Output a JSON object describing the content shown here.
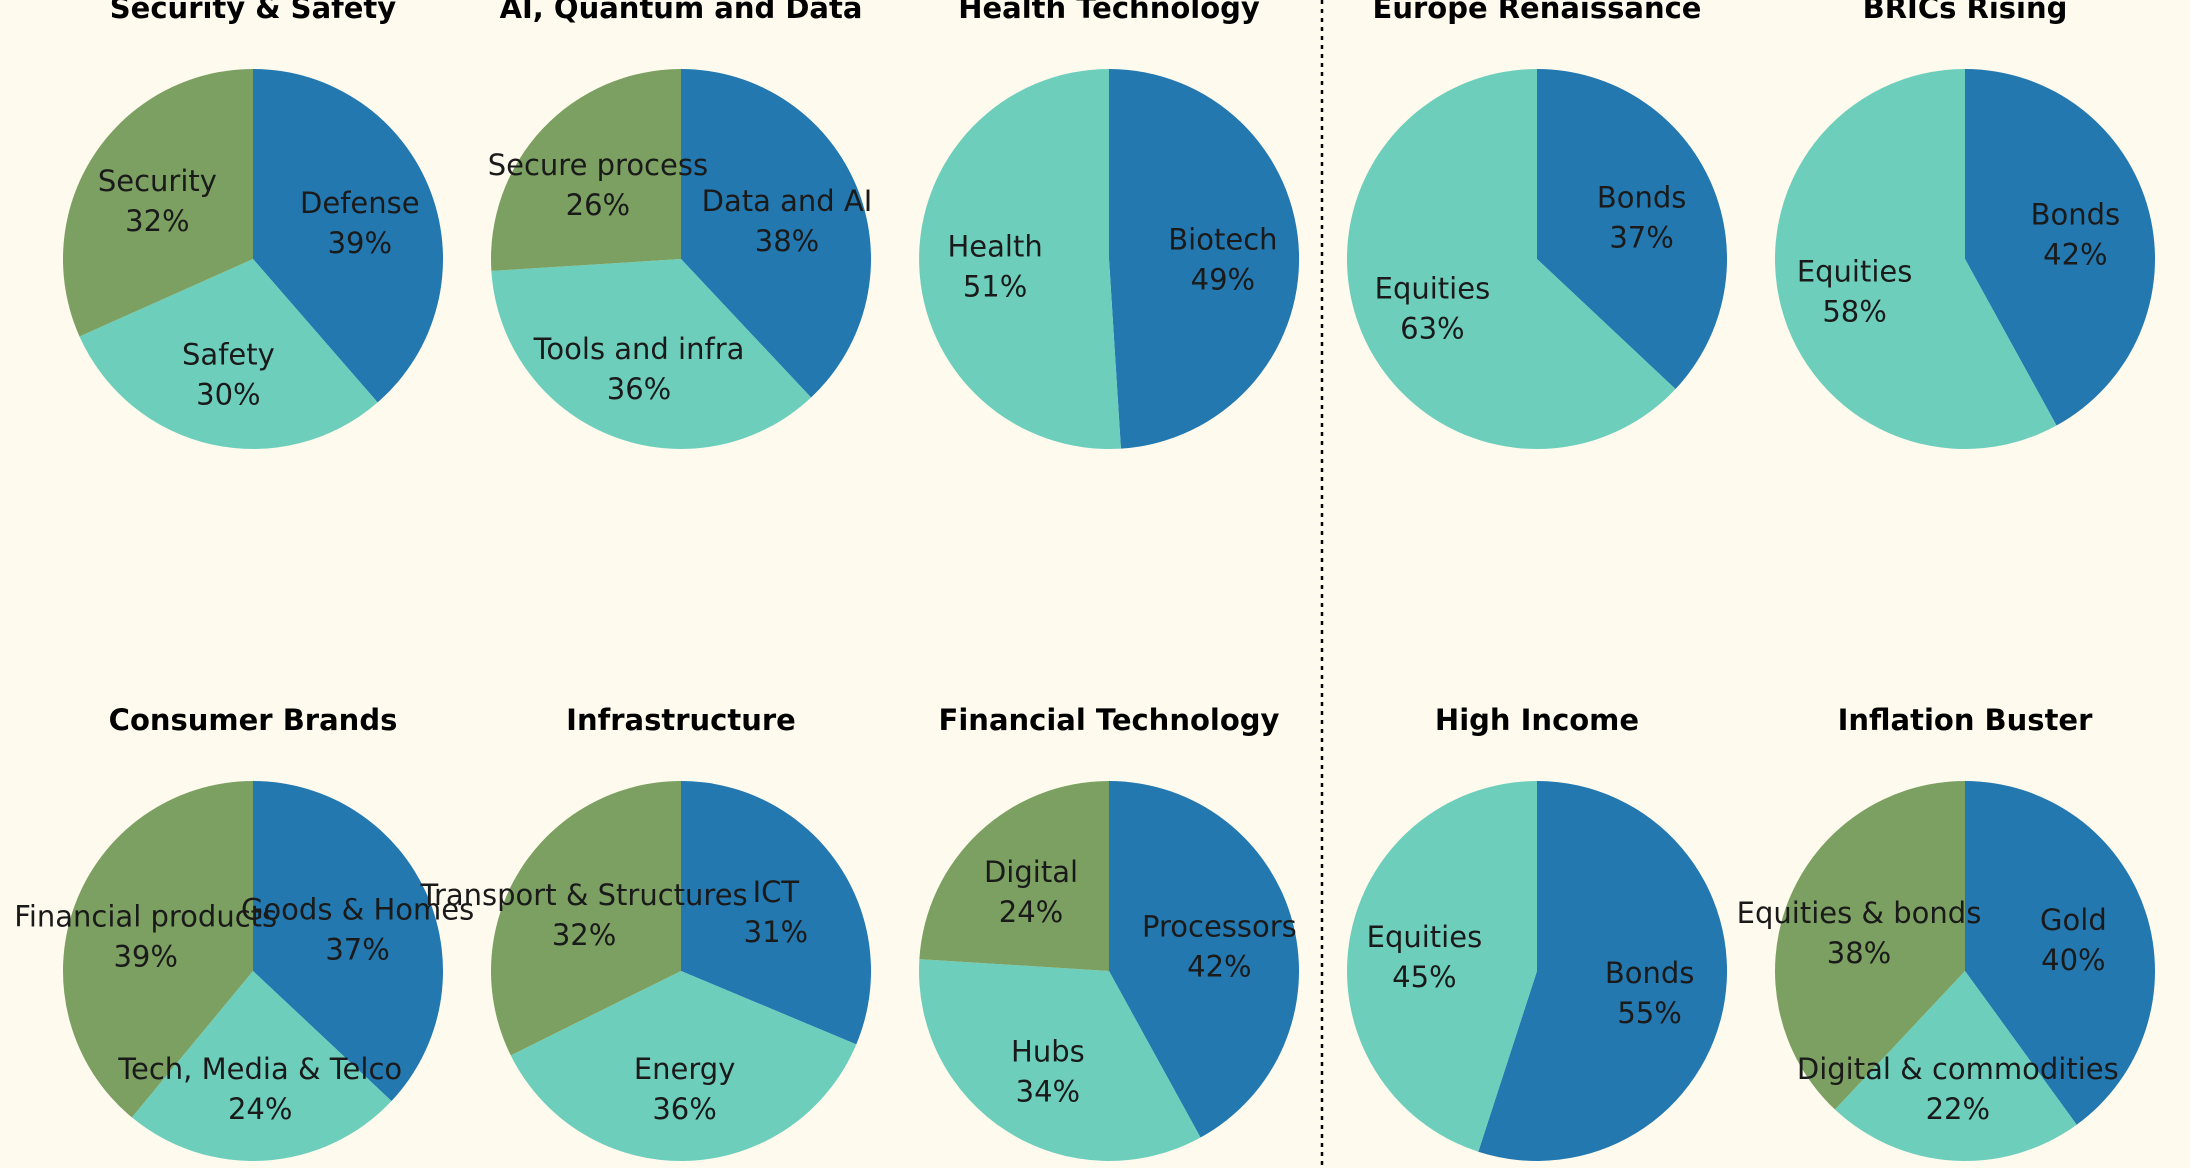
{
  "colors": {
    "blue": "#2378b0",
    "teal": "#6dcfbb",
    "green": "#7ba061",
    "background": "#fefaee"
  },
  "chart_data": [
    {
      "type": "pie",
      "title": "Security & Safety",
      "slices": [
        {
          "label": "Defense",
          "value": 39,
          "display": "39%",
          "color": "#2378b0"
        },
        {
          "label": "Safety",
          "value": 30,
          "display": "30%",
          "color": "#6dcfbb"
        },
        {
          "label": "Security",
          "value": 32,
          "display": "32%",
          "color": "#7ba061"
        }
      ]
    },
    {
      "type": "pie",
      "title": "AI, Quantum and Data",
      "slices": [
        {
          "label": "Data and AI",
          "value": 38,
          "display": "38%",
          "color": "#2378b0"
        },
        {
          "label": "Tools and infra",
          "value": 36,
          "display": "36%",
          "color": "#6dcfbb"
        },
        {
          "label": "Secure process",
          "value": 26,
          "display": "26%",
          "color": "#7ba061"
        }
      ]
    },
    {
      "type": "pie",
      "title": "Health Technology",
      "slices": [
        {
          "label": "Biotech",
          "value": 49,
          "display": "49%",
          "color": "#2378b0"
        },
        {
          "label": "Health",
          "value": 51,
          "display": "51%",
          "color": "#6dcfbb"
        }
      ]
    },
    {
      "type": "pie",
      "title": "Europe Renaissance",
      "slices": [
        {
          "label": "Bonds",
          "value": 37,
          "display": "37%",
          "color": "#2378b0"
        },
        {
          "label": "Equities",
          "value": 63,
          "display": "63%",
          "color": "#6dcfbb"
        }
      ]
    },
    {
      "type": "pie",
      "title": "BRICs Rising",
      "slices": [
        {
          "label": "Bonds",
          "value": 42,
          "display": "42%",
          "color": "#2378b0"
        },
        {
          "label": "Equities",
          "value": 58,
          "display": "58%",
          "color": "#6dcfbb"
        }
      ]
    },
    {
      "type": "pie",
      "title": "Consumer Brands",
      "slices": [
        {
          "label": "Goods & Homes",
          "value": 37,
          "display": "37%",
          "color": "#2378b0"
        },
        {
          "label": "Tech, Media & Telco",
          "value": 24,
          "display": "24%",
          "color": "#6dcfbb"
        },
        {
          "label": "Financial products",
          "value": 39,
          "display": "39%",
          "color": "#7ba061"
        }
      ]
    },
    {
      "type": "pie",
      "title": "Infrastructure",
      "slices": [
        {
          "label": "ICT",
          "value": 31,
          "display": "31%",
          "color": "#2378b0"
        },
        {
          "label": "Energy",
          "value": 36,
          "display": "36%",
          "color": "#6dcfbb"
        },
        {
          "label": "Transport & Structures",
          "value": 32,
          "display": "32%",
          "color": "#7ba061"
        }
      ]
    },
    {
      "type": "pie",
      "title": "Financial Technology",
      "slices": [
        {
          "label": "Processors",
          "value": 42,
          "display": "42%",
          "color": "#2378b0"
        },
        {
          "label": "Hubs",
          "value": 34,
          "display": "34%",
          "color": "#6dcfbb"
        },
        {
          "label": "Digital",
          "value": 24,
          "display": "24%",
          "color": "#7ba061"
        }
      ]
    },
    {
      "type": "pie",
      "title": "High Income",
      "slices": [
        {
          "label": "Bonds",
          "value": 55,
          "display": "55%",
          "color": "#2378b0"
        },
        {
          "label": "Equities",
          "value": 45,
          "display": "45%",
          "color": "#6dcfbb"
        }
      ]
    },
    {
      "type": "pie",
      "title": "Inflation Buster",
      "slices": [
        {
          "label": "Gold",
          "value": 40,
          "display": "40%",
          "color": "#2378b0"
        },
        {
          "label": "Digital & commodities",
          "value": 22,
          "display": "22%",
          "color": "#6dcfbb"
        },
        {
          "label": "Equities & bonds",
          "value": 38,
          "display": "38%",
          "color": "#7ba061"
        }
      ]
    }
  ]
}
